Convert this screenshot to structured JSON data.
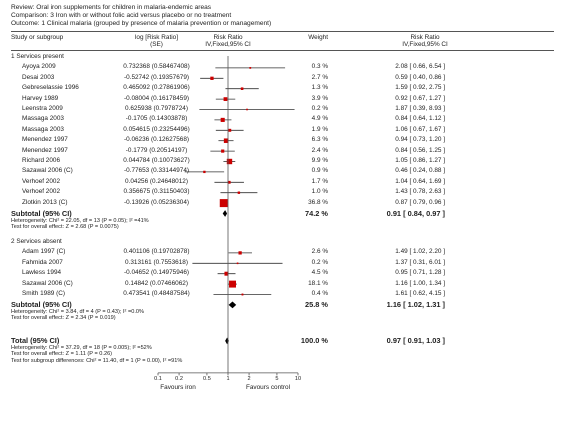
{
  "review": {
    "review_line": "Review:  Oral iron supplements for children in malaria-endemic areas",
    "comparison_line": "Comparison:  3 Iron with or without folic acid versus placebo or no treatment",
    "outcome_line": "Outcome:  1 Clinical malaria (grouped by presence of malaria prevention or management)"
  },
  "columns": {
    "study": "Study or subgroup",
    "logrr": "log [Risk Ratio]",
    "se": "(SE)",
    "rr1": "Risk Ratio",
    "rr1b": "IV,Fixed,95% CI",
    "weight": "Weight",
    "rr2": "Risk Ratio",
    "rr2b": "IV,Fixed,95% CI"
  },
  "subgroups": [
    {
      "title": "1 Services present",
      "studies": [
        {
          "name": "Ayoya 2009",
          "logrr": "0.732368 (0.58467408)",
          "weight": "0.3 %",
          "ci": "2.08 [ 0.66, 6.54 ]",
          "rr": 2.08,
          "lo": 0.66,
          "hi": 6.54,
          "w": 0.3
        },
        {
          "name": "Desai 2003",
          "logrr": "-0.52742 (0.19357679)",
          "weight": "2.7 %",
          "ci": "0.59 [ 0.40, 0.86 ]",
          "rr": 0.59,
          "lo": 0.4,
          "hi": 0.86,
          "w": 2.7
        },
        {
          "name": "Gebreselassie 1996",
          "logrr": "0.465092 (0.27861906)",
          "weight": "1.3 %",
          "ci": "1.59 [ 0.92, 2.75 ]",
          "rr": 1.59,
          "lo": 0.92,
          "hi": 2.75,
          "w": 1.3
        },
        {
          "name": "Harvey 1989",
          "logrr": "-0.08004 (0.16178459)",
          "weight": "3.9 %",
          "ci": "0.92 [ 0.67, 1.27 ]",
          "rr": 0.92,
          "lo": 0.67,
          "hi": 1.27,
          "w": 3.9
        },
        {
          "name": "Leenstra 2009",
          "logrr": "0.625938 (0.7978724)",
          "weight": "0.2 %",
          "ci": "1.87 [ 0.39, 8.93 ]",
          "rr": 1.87,
          "lo": 0.39,
          "hi": 8.93,
          "w": 0.2
        },
        {
          "name": "Massaga 2003",
          "logrr": "-0.1705 (0.14303878)",
          "weight": "4.9 %",
          "ci": "0.84 [ 0.64, 1.12 ]",
          "rr": 0.84,
          "lo": 0.64,
          "hi": 1.12,
          "w": 4.9
        },
        {
          "name": "Massaga 2003",
          "logrr": "0.054615 (0.23254496)",
          "weight": "1.9 %",
          "ci": "1.06 [ 0.67, 1.67 ]",
          "rr": 1.06,
          "lo": 0.67,
          "hi": 1.67,
          "w": 1.9
        },
        {
          "name": "Menendez 1997",
          "logrr": "-0.06236 (0.12627568)",
          "weight": "6.3 %",
          "ci": "0.94 [ 0.73, 1.20 ]",
          "rr": 0.94,
          "lo": 0.73,
          "hi": 1.2,
          "w": 6.3
        },
        {
          "name": "Menendez 1997",
          "logrr": "-0.1779 (0.20514197)",
          "weight": "2.4 %",
          "ci": "0.84 [ 0.56, 1.25 ]",
          "rr": 0.84,
          "lo": 0.56,
          "hi": 1.25,
          "w": 2.4
        },
        {
          "name": "Richard 2006",
          "logrr": "0.044784 (0.10073627)",
          "weight": "9.9 %",
          "ci": "1.05 [ 0.86, 1.27 ]",
          "rr": 1.05,
          "lo": 0.86,
          "hi": 1.27,
          "w": 9.9
        },
        {
          "name": "Sazawal 2006 (C)",
          "logrr": "-0.77653 (0.33144974)",
          "weight": "0.9 %",
          "ci": "0.46 [ 0.24, 0.88 ]",
          "rr": 0.46,
          "lo": 0.24,
          "hi": 0.88,
          "w": 0.9
        },
        {
          "name": "Verhoef 2002",
          "logrr": "0.04256 (0.24648012)",
          "weight": "1.7 %",
          "ci": "1.04 [ 0.64, 1.69 ]",
          "rr": 1.04,
          "lo": 0.64,
          "hi": 1.69,
          "w": 1.7
        },
        {
          "name": "Verhoef 2002",
          "logrr": "0.356675 (0.31150403)",
          "weight": "1.0 %",
          "ci": "1.43 [ 0.78, 2.63 ]",
          "rr": 1.43,
          "lo": 0.78,
          "hi": 2.63,
          "w": 1.0
        },
        {
          "name": "Zlotkin 2013 (C)",
          "logrr": "-0.13926 (0.05236304)",
          "weight": "36.8 %",
          "ci": "0.87 [ 0.79, 0.96 ]",
          "rr": 0.87,
          "lo": 0.79,
          "hi": 0.96,
          "w": 36.8
        }
      ],
      "subtotal": {
        "label": "Subtotal (95% CI)",
        "weight": "74.2 %",
        "ci": "0.91 [ 0.84, 0.97 ]",
        "rr": 0.91,
        "lo": 0.84,
        "hi": 0.97
      },
      "heterogeneity": "Heterogeneity: Chi² = 22.05, df = 13 (P = 0.05); I² =41%",
      "overall": "Test for overall effect: Z = 2.68 (P = 0.0075)"
    },
    {
      "title": "2 Services absent",
      "studies": [
        {
          "name": "Adam 1997 (C)",
          "logrr": "0.401106 (0.19702878)",
          "weight": "2.6 %",
          "ci": "1.49 [ 1.02, 2.20 ]",
          "rr": 1.49,
          "lo": 1.02,
          "hi": 2.2,
          "w": 2.6
        },
        {
          "name": "Fahmida 2007",
          "logrr": "0.313161 (0.7553618)",
          "weight": "0.2 %",
          "ci": "1.37 [ 0.31, 6.01 ]",
          "rr": 1.37,
          "lo": 0.31,
          "hi": 6.01,
          "w": 0.2
        },
        {
          "name": "Lawless 1994",
          "logrr": "-0.04652 (0.14975946)",
          "weight": "4.5 %",
          "ci": "0.95 [ 0.71, 1.28 ]",
          "rr": 0.95,
          "lo": 0.71,
          "hi": 1.28,
          "w": 4.5
        },
        {
          "name": "Sazawal 2006 (C)",
          "logrr": "0.14842 (0.07466062)",
          "weight": "18.1 %",
          "ci": "1.16 [ 1.00, 1.34 ]",
          "rr": 1.16,
          "lo": 1.0,
          "hi": 1.34,
          "w": 18.1
        },
        {
          "name": "Smith 1989 (C)",
          "logrr": "0.473541 (0.48487584)",
          "weight": "0.4 %",
          "ci": "1.61 [ 0.62, 4.15 ]",
          "rr": 1.61,
          "lo": 0.62,
          "hi": 4.15,
          "w": 0.4
        }
      ],
      "subtotal": {
        "label": "Subtotal (95% CI)",
        "weight": "25.8 %",
        "ci": "1.16 [ 1.02, 1.31 ]",
        "rr": 1.16,
        "lo": 1.02,
        "hi": 1.31
      },
      "heterogeneity": "Heterogeneity: Chi² = 3.84, df = 4 (P = 0.43); I² =0.0%",
      "overall": "Test for overall effect: Z = 2.34 (P = 0.019)"
    }
  ],
  "total": {
    "label": "Total (95% CI)",
    "weight": "100.0 %",
    "ci": "0.97 [ 0.91, 1.03 ]",
    "rr": 0.97,
    "lo": 0.91,
    "hi": 1.03,
    "heterogeneity": "Heterogeneity: Chi² = 37.29, df = 18 (P = 0.005); I² =52%",
    "overall": "Test for overall effect: Z = 1.11 (P = 0.26)",
    "subgroup_diff": "Test for subgroup differences: Chi² = 11.40, df = 1 (P = 0.00), I² =91%"
  },
  "axis": {
    "ticks": [
      0.1,
      0.2,
      0.5,
      1,
      2,
      5,
      10
    ],
    "tick_labels": [
      "0.1",
      "0.2",
      "0.5",
      "1",
      "2",
      "5",
      "10"
    ],
    "favours_left": "Favours iron",
    "favours_right": "Favours control"
  },
  "colors": {
    "marker": "#cc0000",
    "line": "#333333",
    "diamond": "#000000"
  }
}
